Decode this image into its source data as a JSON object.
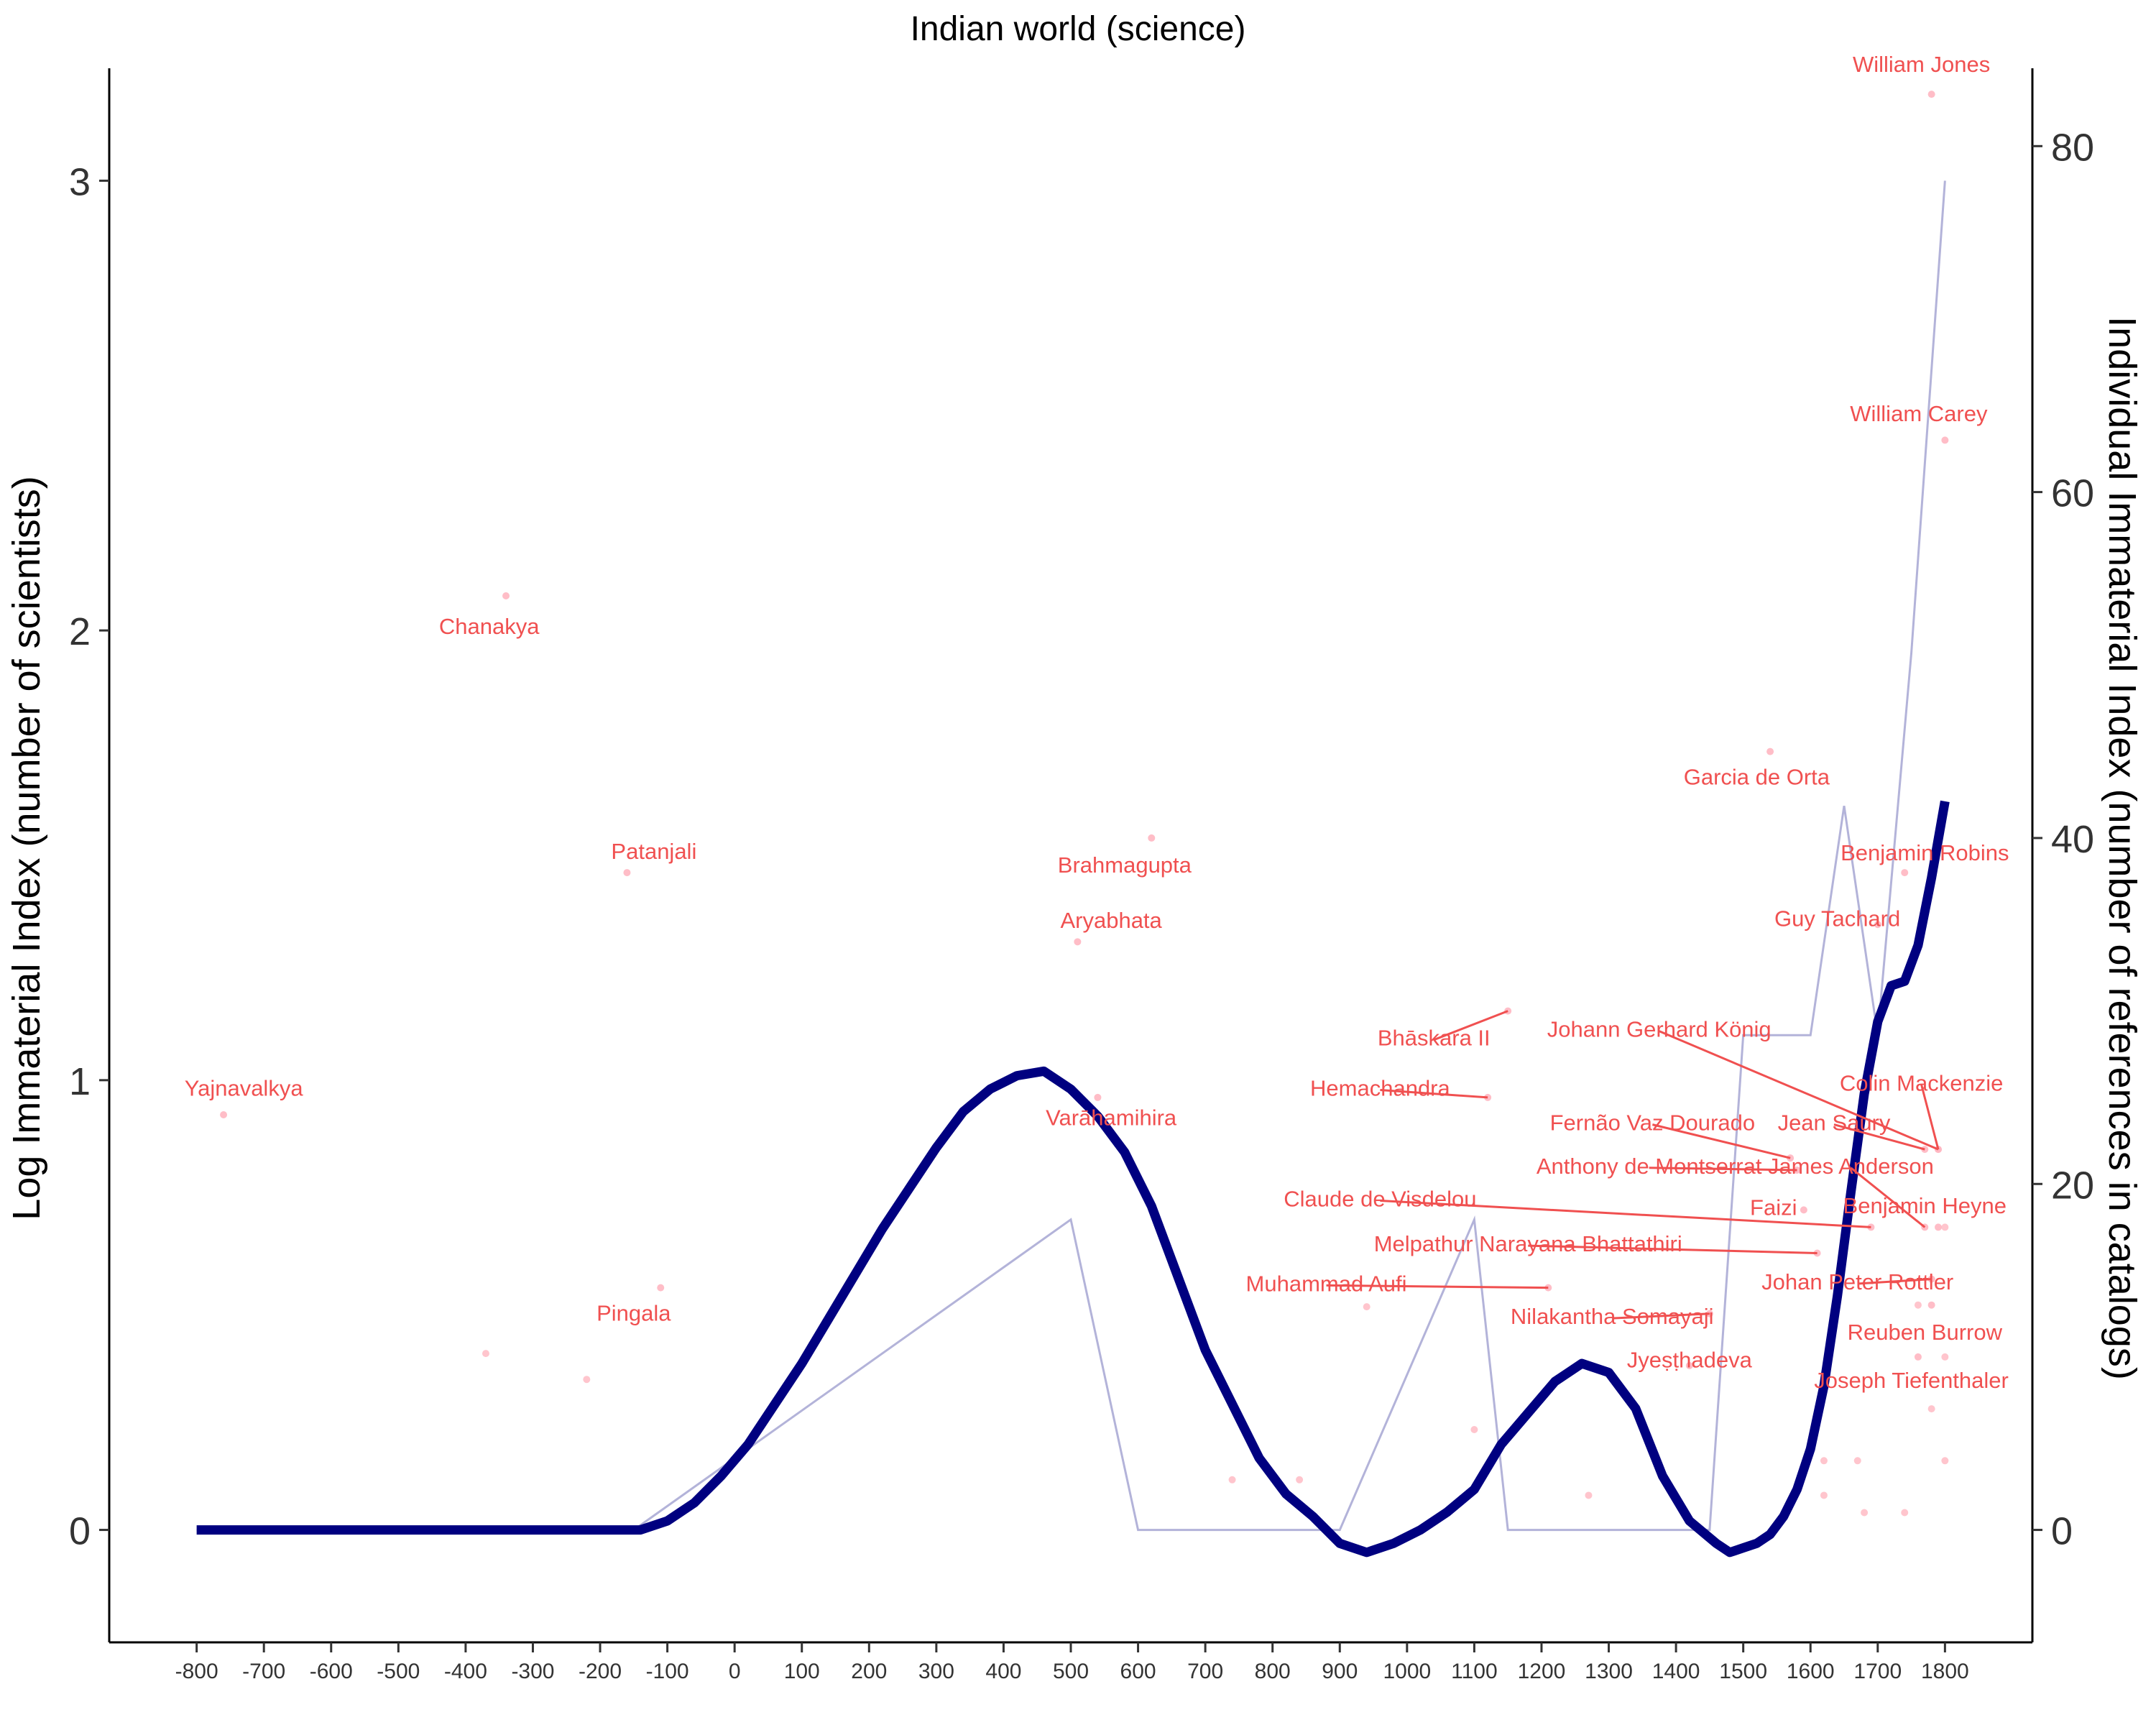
{
  "chart_data": {
    "type": "line",
    "title": "Indian world (science)",
    "ylabel_left": "Log Immaterial Index (number of scientists)",
    "ylabel_right": "Individual Immaterial Index (number of references in catalogs)",
    "xlim": [
      -930,
      1930
    ],
    "ylim_left": [
      -0.25,
      3.25
    ],
    "ylim_right": [
      -6.5,
      84.5
    ],
    "x_ticks": [
      -800,
      -700,
      -600,
      -500,
      -400,
      -300,
      -200,
      -100,
      0,
      100,
      200,
      300,
      400,
      500,
      600,
      700,
      800,
      900,
      1000,
      1100,
      1200,
      1300,
      1400,
      1500,
      1600,
      1700,
      1800
    ],
    "y_left_ticks": [
      0,
      1,
      2,
      3
    ],
    "y_right_ticks": [
      0,
      20,
      40,
      60,
      80
    ],
    "colors": {
      "smooth": "#000080",
      "raw": "#b3b3d9",
      "label": "#f05050",
      "point": "#ffb6c1"
    },
    "smooth_series": {
      "x": [
        -800,
        -750,
        -700,
        -650,
        -600,
        -550,
        -500,
        -450,
        -400,
        -350,
        -300,
        -250,
        -200,
        -150,
        -140,
        -100,
        -60,
        -20,
        20,
        60,
        100,
        140,
        180,
        220,
        260,
        300,
        340,
        380,
        420,
        460,
        500,
        540,
        580,
        620,
        660,
        700,
        740,
        780,
        820,
        860,
        900,
        940,
        980,
        1020,
        1060,
        1100,
        1140,
        1180,
        1220,
        1260,
        1300,
        1340,
        1380,
        1420,
        1460,
        1480,
        1500,
        1520,
        1540,
        1560,
        1580,
        1600,
        1620,
        1640,
        1660,
        1680,
        1700,
        1720,
        1740,
        1760,
        1780,
        1800
      ],
      "y": [
        0,
        0,
        0,
        0,
        0,
        0,
        0,
        0,
        0,
        0,
        0,
        0,
        0,
        0,
        0,
        0.02,
        0.06,
        0.12,
        0.19,
        0.28,
        0.37,
        0.47,
        0.57,
        0.67,
        0.76,
        0.85,
        0.93,
        0.98,
        1.01,
        1.02,
        0.98,
        0.92,
        0.84,
        0.72,
        0.56,
        0.4,
        0.28,
        0.16,
        0.08,
        0.03,
        -0.03,
        -0.05,
        -0.03,
        0.0,
        0.04,
        0.09,
        0.19,
        0.26,
        0.33,
        0.37,
        0.35,
        0.27,
        0.12,
        0.02,
        -0.03,
        -0.05,
        -0.04,
        -0.03,
        -0.01,
        0.03,
        0.09,
        0.18,
        0.32,
        0.52,
        0.75,
        0.97,
        1.13,
        1.21,
        1.22,
        1.3,
        1.45,
        1.62
      ]
    },
    "raw_series": {
      "x": [
        -800,
        -150,
        500,
        600,
        900,
        1100,
        1150,
        1450,
        1500,
        1550,
        1600,
        1650,
        1700,
        1750,
        1800
      ],
      "y": [
        0,
        0,
        0.69,
        0,
        0,
        0.69,
        0,
        0,
        1.1,
        1.1,
        1.1,
        1.61,
        1.1,
        1.95,
        3.0
      ]
    },
    "labels": [
      {
        "name": "William Jones",
        "x": 1780,
        "y": 83.0,
        "lx": 1765,
        "ly": 84.8
      },
      {
        "name": "William Carey",
        "x": 1800,
        "y": 63.0,
        "lx": 1761,
        "ly": 64.6
      },
      {
        "name": "Chanakya",
        "x": -340,
        "y": 54.0,
        "lx": -365,
        "ly": 52.3
      },
      {
        "name": "Garcia de Orta",
        "x": 1540,
        "y": 45.0,
        "lx": 1520,
        "ly": 43.6
      },
      {
        "name": "Patanjali",
        "x": -160,
        "y": 38.0,
        "lx": -120,
        "ly": 39.3
      },
      {
        "name": "Brahmagupta",
        "x": 620,
        "y": 40.0,
        "lx": 580,
        "ly": 38.5
      },
      {
        "name": "Benjamin Robins",
        "x": 1740,
        "y": 38.0,
        "lx": 1770,
        "ly": 39.2
      },
      {
        "name": "Aryabhata",
        "x": 510,
        "y": 34.0,
        "lx": 560,
        "ly": 35.3
      },
      {
        "name": "Guy Tachard",
        "x": 1700,
        "y": 35.0,
        "lx": 1640,
        "ly": 35.4
      },
      {
        "name": "Bhāskara II",
        "x": 1150,
        "y": 30.0,
        "lx": 1040,
        "ly": 28.5
      },
      {
        "name": "Johann Gerhard König",
        "x": 1790,
        "y": 22.0,
        "lx": 1375,
        "ly": 29.0
      },
      {
        "name": "Yajnavalkya",
        "x": -760,
        "y": 24.0,
        "lx": -730,
        "ly": 25.6
      },
      {
        "name": "Hemachandra",
        "x": 1120,
        "y": 25.0,
        "lx": 960,
        "ly": 25.6
      },
      {
        "name": "Colin Mackenzie",
        "x": 1790,
        "y": 22.0,
        "lx": 1765,
        "ly": 25.9
      },
      {
        "name": "Varāhamihira",
        "x": 540,
        "y": 25.0,
        "lx": 560,
        "ly": 23.9
      },
      {
        "name": "Fernão Vaz Dourado",
        "x": 1570,
        "y": 21.5,
        "lx": 1365,
        "ly": 23.6
      },
      {
        "name": "Jean Saury",
        "x": 1770,
        "y": 22.0,
        "lx": 1635,
        "ly": 23.6
      },
      {
        "name": "Anthony de Montserrat",
        "x": 1580,
        "y": 20.8,
        "lx": 1360,
        "ly": 21.1
      },
      {
        "name": "James Anderson",
        "x": 1770,
        "y": 17.5,
        "lx": 1660,
        "ly": 21.1
      },
      {
        "name": "Claude de Visdelou",
        "x": 1690,
        "y": 17.5,
        "lx": 960,
        "ly": 19.2
      },
      {
        "name": "Faizi",
        "x": 1590,
        "y": 18.5,
        "lx": 1545,
        "ly": 18.7
      },
      {
        "name": "Benjamin Heyne",
        "x": 1790,
        "y": 17.5,
        "lx": 1770,
        "ly": 18.8
      },
      {
        "name": "Melpathur Narayana Bhattathiri",
        "x": 1610,
        "y": 16.0,
        "lx": 1180,
        "ly": 16.6
      },
      {
        "name": "Johan Peter Rottler",
        "x": 1780,
        "y": 14.5,
        "lx": 1670,
        "ly": 14.4
      },
      {
        "name": "Muhammad Aufi",
        "x": 1210,
        "y": 14.0,
        "lx": 880,
        "ly": 14.3
      },
      {
        "name": "Nilakantha Somayaji",
        "x": 1450,
        "y": 12.5,
        "lx": 1305,
        "ly": 12.4
      },
      {
        "name": "Pingala",
        "x": -110,
        "y": 14.0,
        "lx": -150,
        "ly": 12.6
      },
      {
        "name": "Reuben Burrow",
        "x": 1780,
        "y": 13.0,
        "lx": 1770,
        "ly": 11.5
      },
      {
        "name": "Jyeṣṭhadeva",
        "x": 1420,
        "y": 9.5,
        "lx": 1420,
        "ly": 9.9
      },
      {
        "name": "Joseph Tiefenthaler",
        "x": 1760,
        "y": 10.0,
        "lx": 1750,
        "ly": 8.7
      }
    ],
    "points": [
      {
        "x": -370,
        "y": 10.2
      },
      {
        "x": -220,
        "y": 8.7
      },
      {
        "x": 940,
        "y": 12.9
      },
      {
        "x": 1100,
        "y": 5.8
      },
      {
        "x": 740,
        "y": 2.9
      },
      {
        "x": 840,
        "y": 2.9
      },
      {
        "x": 1270,
        "y": 2.0
      },
      {
        "x": 1620,
        "y": 4.0
      },
      {
        "x": 1670,
        "y": 4.0
      },
      {
        "x": 1620,
        "y": 2.0
      },
      {
        "x": 1680,
        "y": 1.0
      },
      {
        "x": 1740,
        "y": 1.0
      },
      {
        "x": 1800,
        "y": 4.0
      },
      {
        "x": 1780,
        "y": 7.0
      },
      {
        "x": 1760,
        "y": 13.0
      },
      {
        "x": 1800,
        "y": 10.0
      },
      {
        "x": 1800,
        "y": 17.5
      },
      {
        "x": 1780,
        "y": 14.5
      }
    ]
  }
}
